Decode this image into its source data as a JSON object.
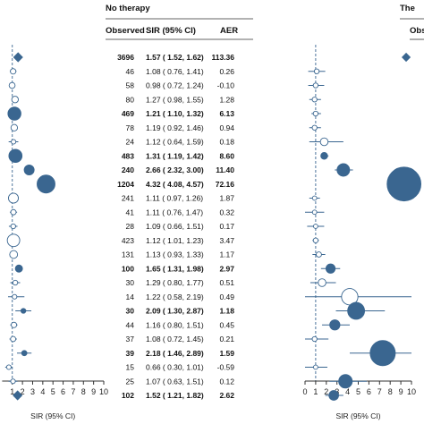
{
  "colors": {
    "filled": "#3a6690",
    "open": "#ffffff",
    "line": "#3a6690",
    "axis": "#333333",
    "text": "#111111"
  },
  "headers": {
    "group_left": "No therapy",
    "col_observed": "Observed",
    "col_sir": "SIR (95% CI)",
    "col_aer": "AER",
    "group_right_partial": "The",
    "col_right_partial": "Obs"
  },
  "rows": [
    {
      "observed": "3696",
      "sir": "1.57 ( 1.52, 1.62)",
      "aer": "113.36",
      "bold": true
    },
    {
      "observed": "46",
      "sir": "1.08 ( 0.76, 1.41)",
      "aer": "0.26",
      "bold": false
    },
    {
      "observed": "58",
      "sir": "0.98 ( 0.72, 1.24)",
      "aer": "-0.10",
      "bold": false
    },
    {
      "observed": "80",
      "sir": "1.27 ( 0.98, 1.55)",
      "aer": "1.28",
      "bold": false
    },
    {
      "observed": "469",
      "sir": "1.21 ( 1.10, 1.32)",
      "aer": "6.13",
      "bold": true
    },
    {
      "observed": "78",
      "sir": "1.19 ( 0.92, 1.46)",
      "aer": "0.94",
      "bold": false
    },
    {
      "observed": "24",
      "sir": "1.12 ( 0.64, 1.59)",
      "aer": "0.18",
      "bold": false
    },
    {
      "observed": "483",
      "sir": "1.31 ( 1.19, 1.42)",
      "aer": "8.60",
      "bold": true
    },
    {
      "observed": "240",
      "sir": "2.66 ( 2.32, 3.00)",
      "aer": "11.40",
      "bold": true
    },
    {
      "observed": "1204",
      "sir": "4.32 ( 4.08, 4.57)",
      "aer": "72.16",
      "bold": true
    },
    {
      "observed": "241",
      "sir": "1.11 ( 0.97, 1.26)",
      "aer": "1.87",
      "bold": false
    },
    {
      "observed": "41",
      "sir": "1.11 ( 0.76, 1.47)",
      "aer": "0.32",
      "bold": false
    },
    {
      "observed": "28",
      "sir": "1.09 ( 0.66, 1.51)",
      "aer": "0.17",
      "bold": false
    },
    {
      "observed": "423",
      "sir": "1.12 ( 1.01, 1.23)",
      "aer": "3.47",
      "bold": false
    },
    {
      "observed": "131",
      "sir": "1.13 ( 0.93, 1.33)",
      "aer": "1.17",
      "bold": false
    },
    {
      "observed": "100",
      "sir": "1.65 ( 1.31, 1.98)",
      "aer": "2.97",
      "bold": true
    },
    {
      "observed": "30",
      "sir": "1.29 ( 0.80, 1.77)",
      "aer": "0.51",
      "bold": false
    },
    {
      "observed": "14",
      "sir": "1.22 ( 0.58, 2.19)",
      "aer": "0.49",
      "bold": false
    },
    {
      "observed": "30",
      "sir": "2.09 ( 1.30, 2.87)",
      "aer": "1.18",
      "bold": true
    },
    {
      "observed": "44",
      "sir": "1.16 ( 0.80, 1.51)",
      "aer": "0.45",
      "bold": false
    },
    {
      "observed": "37",
      "sir": "1.08 ( 0.72, 1.45)",
      "aer": "0.21",
      "bold": false
    },
    {
      "observed": "39",
      "sir": "2.18 ( 1.46, 2.89)",
      "aer": "1.59",
      "bold": true
    },
    {
      "observed": "15",
      "sir": "0.66 ( 0.30, 1.01)",
      "aer": "-0.59",
      "bold": false
    },
    {
      "observed": "25",
      "sir": "1.07 ( 0.63, 1.51)",
      "aer": "0.12",
      "bold": false
    },
    {
      "observed": "102",
      "sir": "1.52 ( 1.21, 1.82)",
      "aer": "2.62",
      "bold": true
    }
  ],
  "chart_data": [
    {
      "type": "scatter",
      "xlabel": "SIR (95% CI)",
      "xlim": [
        0,
        10
      ],
      "xticks": [
        "1",
        "2",
        "3",
        "4",
        "5",
        "6",
        "7",
        "8",
        "9",
        "10"
      ],
      "reference_line": 1,
      "points": [
        {
          "est": 1.57,
          "lo": 1.52,
          "hi": 1.62,
          "marker": "diamond",
          "filled": true,
          "observed": 3696
        },
        {
          "est": 1.08,
          "lo": 0.76,
          "hi": 1.41,
          "marker": "circle",
          "filled": false,
          "observed": 46
        },
        {
          "est": 0.98,
          "lo": 0.72,
          "hi": 1.24,
          "marker": "circle",
          "filled": false,
          "observed": 58
        },
        {
          "est": 1.27,
          "lo": 0.98,
          "hi": 1.55,
          "marker": "circle",
          "filled": false,
          "observed": 80
        },
        {
          "est": 1.21,
          "lo": 1.1,
          "hi": 1.32,
          "marker": "circle",
          "filled": true,
          "observed": 469
        },
        {
          "est": 1.19,
          "lo": 0.92,
          "hi": 1.46,
          "marker": "circle",
          "filled": false,
          "observed": 78
        },
        {
          "est": 1.12,
          "lo": 0.64,
          "hi": 1.59,
          "marker": "circle",
          "filled": false,
          "observed": 24
        },
        {
          "est": 1.31,
          "lo": 1.19,
          "hi": 1.42,
          "marker": "circle",
          "filled": true,
          "observed": 483
        },
        {
          "est": 2.66,
          "lo": 2.32,
          "hi": 3.0,
          "marker": "circle",
          "filled": true,
          "observed": 240
        },
        {
          "est": 4.32,
          "lo": 4.08,
          "hi": 4.57,
          "marker": "circle",
          "filled": true,
          "observed": 1204
        },
        {
          "est": 1.11,
          "lo": 0.97,
          "hi": 1.26,
          "marker": "circle",
          "filled": false,
          "observed": 241
        },
        {
          "est": 1.11,
          "lo": 0.76,
          "hi": 1.47,
          "marker": "circle",
          "filled": false,
          "observed": 41
        },
        {
          "est": 1.09,
          "lo": 0.66,
          "hi": 1.51,
          "marker": "circle",
          "filled": false,
          "observed": 28
        },
        {
          "est": 1.12,
          "lo": 1.01,
          "hi": 1.23,
          "marker": "circle",
          "filled": false,
          "observed": 423
        },
        {
          "est": 1.13,
          "lo": 0.93,
          "hi": 1.33,
          "marker": "circle",
          "filled": false,
          "observed": 131
        },
        {
          "est": 1.65,
          "lo": 1.31,
          "hi": 1.98,
          "marker": "circle",
          "filled": true,
          "observed": 100
        },
        {
          "est": 1.29,
          "lo": 0.8,
          "hi": 1.77,
          "marker": "circle",
          "filled": false,
          "observed": 30
        },
        {
          "est": 1.22,
          "lo": 0.58,
          "hi": 2.19,
          "marker": "circle",
          "filled": false,
          "observed": 14
        },
        {
          "est": 2.09,
          "lo": 1.3,
          "hi": 2.87,
          "marker": "circle",
          "filled": true,
          "observed": 30
        },
        {
          "est": 1.16,
          "lo": 0.8,
          "hi": 1.51,
          "marker": "circle",
          "filled": false,
          "observed": 44
        },
        {
          "est": 1.08,
          "lo": 0.72,
          "hi": 1.45,
          "marker": "circle",
          "filled": false,
          "observed": 37
        },
        {
          "est": 2.18,
          "lo": 1.46,
          "hi": 2.89,
          "marker": "circle",
          "filled": true,
          "observed": 39
        },
        {
          "est": 0.66,
          "lo": 0.3,
          "hi": 1.01,
          "marker": "circle",
          "filled": false,
          "observed": 15
        },
        {
          "est": 1.07,
          "lo": 0.63,
          "hi": 1.51,
          "marker": "circle",
          "filled": false,
          "observed": 25
        },
        {
          "est": 1.52,
          "lo": 1.21,
          "hi": 1.82,
          "marker": "diamond",
          "filled": true,
          "observed": 102
        }
      ]
    },
    {
      "type": "scatter",
      "xlabel": "SIR (95% CI)",
      "xlim": [
        0,
        10
      ],
      "xticks": [
        "0",
        "1",
        "2",
        "3",
        "4",
        "5",
        "6",
        "7",
        "8",
        "9",
        "10"
      ],
      "reference_line": 1,
      "points": [
        {
          "est": 9.5,
          "lo": 9.5,
          "hi": 9.5,
          "marker": "diamond",
          "filled": true,
          "size": 1.0
        },
        {
          "est": 1.1,
          "lo": 0.3,
          "hi": 1.9,
          "marker": "circle",
          "filled": false,
          "size": 1.0
        },
        {
          "est": 1.0,
          "lo": 0.3,
          "hi": 1.8,
          "marker": "circle",
          "filled": false,
          "size": 1.0
        },
        {
          "est": 0.9,
          "lo": 0.4,
          "hi": 1.5,
          "marker": "circle",
          "filled": false,
          "size": 1.0
        },
        {
          "est": 1.0,
          "lo": 0.6,
          "hi": 1.5,
          "marker": "circle",
          "filled": false,
          "size": 1.0
        },
        {
          "est": 0.9,
          "lo": 0.4,
          "hi": 1.5,
          "marker": "circle",
          "filled": false,
          "size": 1.0
        },
        {
          "est": 1.8,
          "lo": 0.4,
          "hi": 3.6,
          "marker": "circle",
          "filled": false,
          "size": 1.6
        },
        {
          "est": 1.8,
          "lo": 1.5,
          "hi": 2.2,
          "marker": "circle",
          "filled": true,
          "size": 1.4
        },
        {
          "est": 3.6,
          "lo": 2.8,
          "hi": 4.5,
          "marker": "circle",
          "filled": true,
          "size": 2.6
        },
        {
          "est": 9.3,
          "lo": 8.8,
          "hi": 10.0,
          "marker": "circle",
          "filled": true,
          "size": 7.0
        },
        {
          "est": 0.9,
          "lo": 0.4,
          "hi": 1.4,
          "marker": "circle",
          "filled": false,
          "size": 0.9
        },
        {
          "est": 0.9,
          "lo": 0.0,
          "hi": 1.8,
          "marker": "circle",
          "filled": false,
          "size": 0.9
        },
        {
          "est": 1.0,
          "lo": 0.2,
          "hi": 1.8,
          "marker": "circle",
          "filled": false,
          "size": 0.9
        },
        {
          "est": 1.0,
          "lo": 0.7,
          "hi": 1.3,
          "marker": "circle",
          "filled": false,
          "size": 1.0
        },
        {
          "est": 1.3,
          "lo": 0.7,
          "hi": 1.9,
          "marker": "circle",
          "filled": false,
          "size": 1.1
        },
        {
          "est": 2.4,
          "lo": 1.5,
          "hi": 3.3,
          "marker": "circle",
          "filled": true,
          "size": 1.9
        },
        {
          "est": 1.6,
          "lo": 0.5,
          "hi": 2.9,
          "marker": "circle",
          "filled": false,
          "size": 1.6
        },
        {
          "est": 4.2,
          "lo": 0.0,
          "hi": 10.0,
          "marker": "circle",
          "filled": false,
          "size": 3.4
        },
        {
          "est": 4.8,
          "lo": 2.9,
          "hi": 7.5,
          "marker": "circle",
          "filled": true,
          "size": 3.5
        },
        {
          "est": 2.8,
          "lo": 1.6,
          "hi": 4.2,
          "marker": "circle",
          "filled": true,
          "size": 2.1
        },
        {
          "est": 0.9,
          "lo": 0.0,
          "hi": 2.2,
          "marker": "circle",
          "filled": false,
          "size": 1.0
        },
        {
          "est": 7.3,
          "lo": 4.2,
          "hi": 10.0,
          "marker": "circle",
          "filled": true,
          "size": 5.2
        },
        {
          "est": 1.0,
          "lo": 0.0,
          "hi": 2.1,
          "marker": "circle",
          "filled": false,
          "size": 0.9
        },
        {
          "est": 3.8,
          "lo": 2.3,
          "hi": 5.8,
          "marker": "circle",
          "filled": true,
          "size": 2.8
        },
        {
          "est": 2.7,
          "lo": 1.9,
          "hi": 3.6,
          "marker": "circle",
          "filled": true,
          "size": 2.0
        }
      ]
    }
  ]
}
